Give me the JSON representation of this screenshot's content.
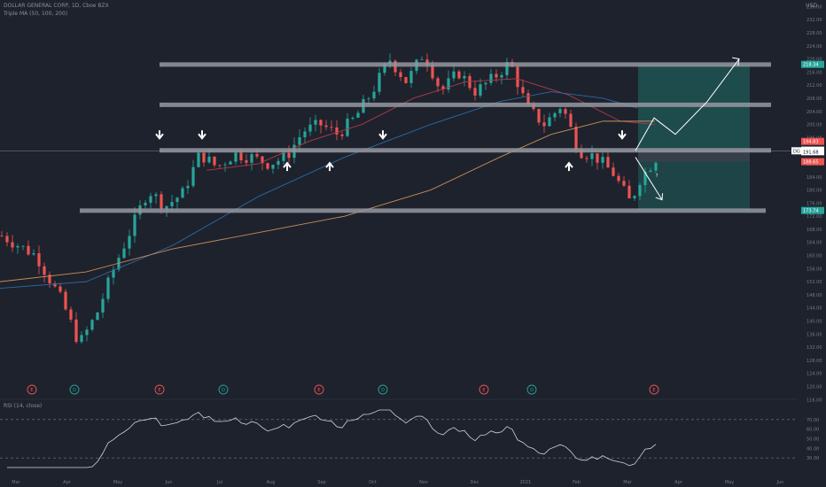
{
  "header": {
    "title": "DOLLAR GENERAL CORP, 1D, Cboe BZX",
    "indicator": "Triple MA (50, 100, 200)",
    "currency": "USD"
  },
  "rsi_title": "RSI (14, close)",
  "colors": {
    "background": "#1e222d",
    "up": "#26a69a",
    "down": "#ef5350",
    "ma50": "#b23b48",
    "ma100": "#2a6aa3",
    "ma200": "#c58e55",
    "level": "#9598a1",
    "target_zone": "#1e5252",
    "stop_zone": "#3a3f4a",
    "annotation": "#ffffff",
    "event_earnings": "#ef5350",
    "event_dividend": "#26a69a"
  },
  "chart_data": {
    "type": "candlestick",
    "symbol": "DG",
    "timeframe": "1D",
    "exchange": "Cboe BZX",
    "x_ticks": [
      "Mar",
      "Apr",
      "May",
      "Jun",
      "Jul",
      "Aug",
      "Sep",
      "Oct",
      "Nov",
      "Dec",
      "2021",
      "Feb",
      "Mar",
      "Apr",
      "May",
      "Jun"
    ],
    "y_ticks": [
      116.0,
      120.0,
      124.0,
      128.0,
      132.0,
      136.0,
      140.0,
      144.0,
      148.0,
      152.0,
      156.0,
      160.0,
      164.0,
      168.0,
      172.0,
      176.0,
      180.0,
      184.0,
      188.0,
      192.0,
      196.0,
      200.0,
      204.0,
      208.0,
      212.0,
      216.0,
      220.0,
      224.0,
      228.0,
      232.0,
      236.0
    ],
    "ylim": [
      115,
      238
    ],
    "price_path": [
      [
        0,
        166
      ],
      [
        4,
        160
      ],
      [
        7,
        146
      ],
      [
        9,
        133
      ],
      [
        11,
        142
      ],
      [
        13,
        156
      ],
      [
        15,
        168
      ],
      [
        17,
        180
      ],
      [
        19,
        175
      ],
      [
        21,
        179
      ],
      [
        23,
        191
      ],
      [
        25,
        187
      ],
      [
        27,
        191
      ],
      [
        29,
        190
      ],
      [
        31,
        188
      ],
      [
        33,
        190
      ],
      [
        35,
        198
      ],
      [
        37,
        200
      ],
      [
        39,
        197
      ],
      [
        41,
        202
      ],
      [
        43,
        210
      ],
      [
        45,
        220
      ],
      [
        47,
        213
      ],
      [
        49,
        222
      ],
      [
        51,
        210
      ],
      [
        53,
        216
      ],
      [
        55,
        210
      ],
      [
        57,
        214
      ],
      [
        59,
        219
      ],
      [
        61,
        205
      ],
      [
        63,
        200
      ],
      [
        65,
        206
      ],
      [
        67,
        192
      ],
      [
        69,
        190
      ],
      [
        71,
        185
      ],
      [
        73,
        176
      ],
      [
        74,
        183
      ],
      [
        76,
        190
      ]
    ],
    "levels": [
      218.3,
      206.0,
      192.1,
      173.7
    ],
    "ma50": [
      [
        24,
        186
      ],
      [
        30,
        188
      ],
      [
        36,
        195
      ],
      [
        42,
        200
      ],
      [
        48,
        208
      ],
      [
        54,
        213
      ],
      [
        60,
        214
      ],
      [
        66,
        209
      ],
      [
        72,
        201
      ],
      [
        76,
        200
      ]
    ],
    "ma100": [
      [
        0,
        150
      ],
      [
        10,
        152
      ],
      [
        20,
        163
      ],
      [
        30,
        178
      ],
      [
        40,
        190
      ],
      [
        50,
        200
      ],
      [
        58,
        207
      ],
      [
        64,
        210
      ],
      [
        70,
        208
      ],
      [
        74,
        205
      ]
    ],
    "ma200": [
      [
        0,
        152
      ],
      [
        10,
        155
      ],
      [
        20,
        162
      ],
      [
        30,
        167
      ],
      [
        40,
        172
      ],
      [
        50,
        180
      ],
      [
        58,
        190
      ],
      [
        64,
        197
      ],
      [
        70,
        201
      ],
      [
        76,
        201
      ]
    ],
    "price_labels": [
      {
        "value": 218.34,
        "text": "218.34",
        "color": "#26a69a"
      },
      {
        "value": 194.83,
        "text": "194.83",
        "color": "#ef5350"
      },
      {
        "value": 192.16,
        "text": "192.16",
        "color": "#ffffff"
      },
      {
        "value": 191.96,
        "text": "191.96",
        "color": "#ffffff"
      },
      {
        "value": 191.68,
        "text": "191.68",
        "color": "#ffffff"
      },
      {
        "value": 188.65,
        "text": "188.65",
        "color": "#ef5350"
      },
      {
        "value": 173.74,
        "text": "173.74",
        "color": "#26a69a"
      }
    ],
    "symbol_tag": "DG",
    "arrows_down": [
      30,
      38,
      72,
      117
    ],
    "arrows_up": [
      54,
      62,
      107
    ],
    "question_mark": "?",
    "events": [
      {
        "x": 6,
        "type": "E"
      },
      {
        "x": 14,
        "type": "D"
      },
      {
        "x": 30,
        "type": "E"
      },
      {
        "x": 42,
        "type": "D"
      },
      {
        "x": 60,
        "type": "E"
      },
      {
        "x": 72,
        "type": "D"
      },
      {
        "x": 91,
        "type": "E"
      },
      {
        "x": 100,
        "type": "D"
      },
      {
        "x": 123,
        "type": "E"
      }
    ],
    "rsi": {
      "period": 14,
      "upper": 70,
      "lower": 30,
      "ylim": [
        20,
        80
      ]
    }
  }
}
